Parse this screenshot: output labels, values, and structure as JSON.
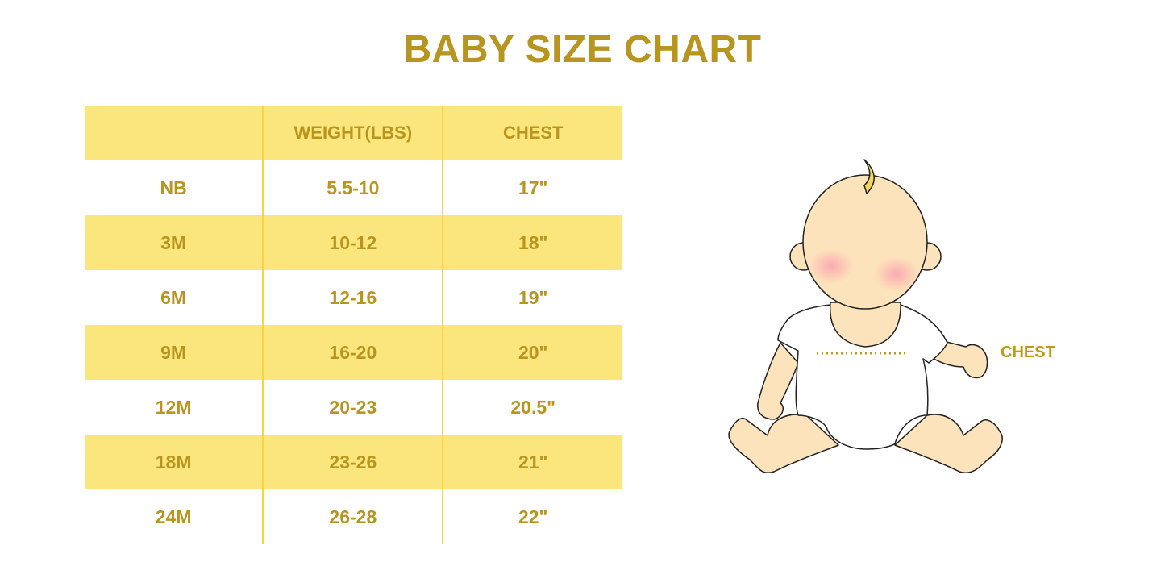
{
  "title": "BABY SIZE CHART",
  "table": {
    "headers": [
      "",
      "WEIGHT(LBS)",
      "CHEST"
    ],
    "rows": [
      [
        "NB",
        "5.5-10",
        "17\""
      ],
      [
        "3M",
        "10-12",
        "18\""
      ],
      [
        "6M",
        "12-16",
        "19\""
      ],
      [
        "9M",
        "16-20",
        "20\""
      ],
      [
        "12M",
        "20-23",
        "20.5\""
      ],
      [
        "18M",
        "23-26",
        "21\""
      ],
      [
        "24M",
        "26-28",
        "22\""
      ]
    ]
  },
  "illustration": {
    "icon": "baby-illustration",
    "chest_label": "CHEST"
  },
  "colors": {
    "text": "#b8951f",
    "stripe": "#fbe67d",
    "divider": "#fbd63a",
    "skin": "#fde3bb"
  }
}
